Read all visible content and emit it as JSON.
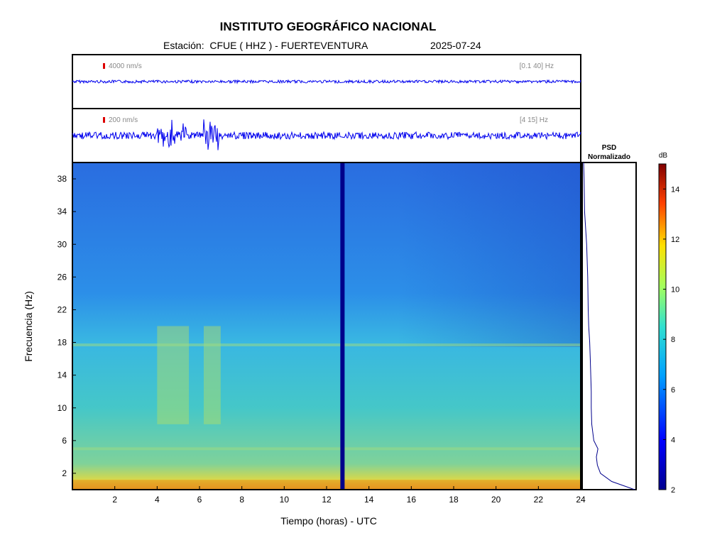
{
  "header": {
    "title": "INSTITUTO GEOGRÁFICO NACIONAL",
    "station_label": "Estación:  CFUE ( HHZ ) - FUERTEVENTURA",
    "date": "2025-07-24"
  },
  "trace_top": {
    "scale_label": "4000 nm/s",
    "band_label": "[0.1 40] Hz"
  },
  "trace_bottom": {
    "scale_label": "200 nm/s",
    "band_label": "[4 15] Hz"
  },
  "psd": {
    "title_line1": "PSD",
    "title_line2": "Normalizado"
  },
  "colorbar": {
    "unit": "dB",
    "min": 2,
    "max": 15,
    "ticks": [
      "2",
      "4",
      "6",
      "8",
      "10",
      "12",
      "14"
    ]
  },
  "accent_colors": {
    "trace": "#0000ee",
    "scale_marker": "#dd0000",
    "gap": "#00008b"
  },
  "chart_data": {
    "type": "heatmap",
    "xlabel": "Tiempo (horas) - UTC",
    "ylabel": "Frecuencia  (Hz)",
    "xlim": [
      0,
      24
    ],
    "ylim": [
      0,
      40
    ],
    "x_ticks": [
      "2",
      "4",
      "6",
      "8",
      "10",
      "12",
      "14",
      "16",
      "18",
      "20",
      "22",
      "24"
    ],
    "y_ticks": [
      "2",
      "6",
      "10",
      "14",
      "18",
      "22",
      "26",
      "30",
      "34",
      "38"
    ],
    "data_gap_hours": 12.75,
    "band_frequencies_hz": [
      17.7,
      5.0
    ],
    "high_energy_intervals_hours": [
      [
        4.0,
        5.5
      ],
      [
        6.2,
        7.0
      ]
    ],
    "psd_profile": {
      "frequency_hz": [
        0,
        1,
        2,
        3,
        4,
        5,
        6,
        8,
        10,
        12,
        14,
        16,
        18,
        20,
        22,
        26,
        30,
        34,
        38,
        40
      ],
      "level": [
        1.0,
        0.55,
        0.33,
        0.27,
        0.25,
        0.28,
        0.2,
        0.16,
        0.15,
        0.15,
        0.14,
        0.13,
        0.12,
        0.1,
        0.09,
        0.08,
        0.06,
        0.02,
        0.01,
        0.0
      ]
    }
  }
}
